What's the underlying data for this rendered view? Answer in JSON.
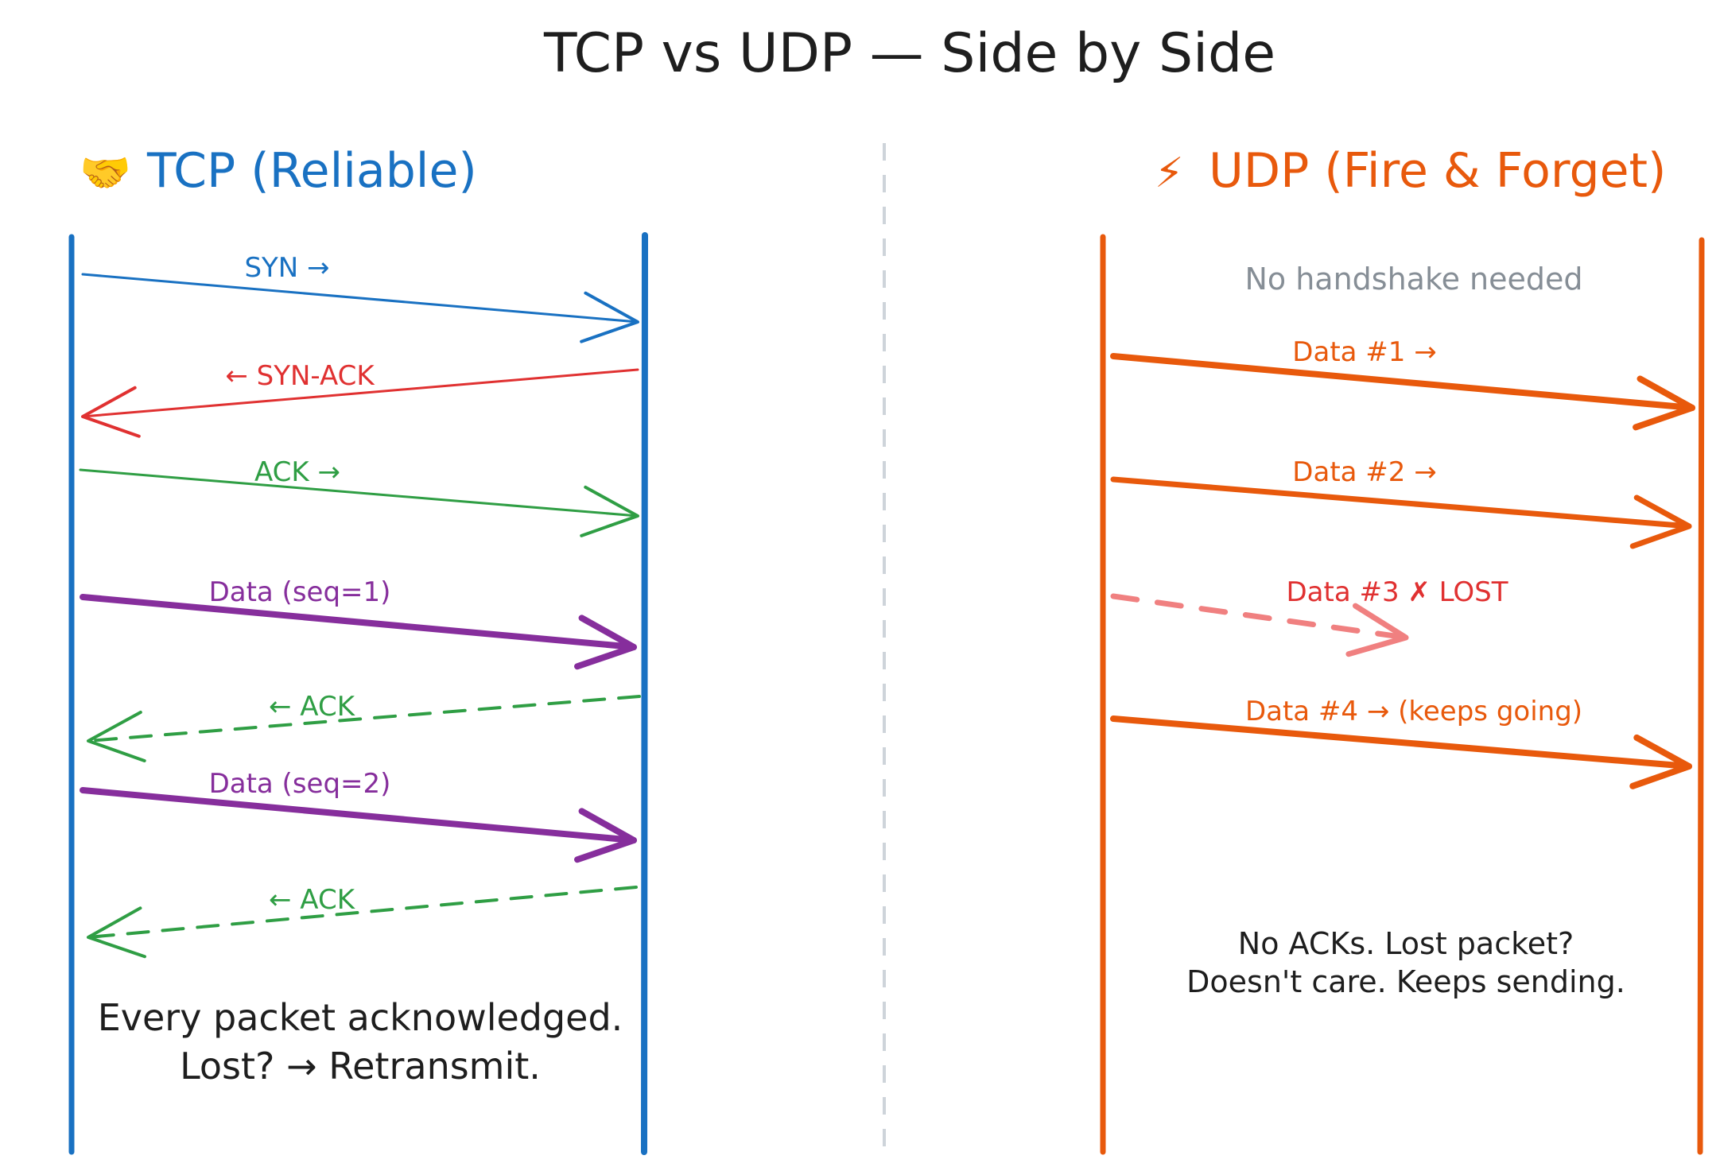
{
  "title": "TCP vs UDP — Side by Side",
  "colors": {
    "tcp": "#1971c2",
    "udp": "#e8590c",
    "syn_ack": "#e03131",
    "ack": "#2f9e44",
    "data": "#862e9c",
    "lost": "#f08080",
    "lost_text": "#e03131",
    "muted": "#868e96",
    "text": "#1e1e1e",
    "divider": "#ced4da"
  },
  "tcp": {
    "icon": "handshake-icon",
    "icon_char": "🤝",
    "heading": "TCP (Reliable)",
    "messages": [
      {
        "label": "SYN →",
        "style": "solid",
        "direction": "right"
      },
      {
        "label": "← SYN-ACK",
        "style": "solid",
        "direction": "left"
      },
      {
        "label": "ACK →",
        "style": "solid",
        "direction": "right"
      },
      {
        "label": "Data (seq=1)",
        "style": "solid-thick",
        "direction": "right"
      },
      {
        "label": "← ACK",
        "style": "dashed",
        "direction": "left"
      },
      {
        "label": "Data (seq=2)",
        "style": "solid-thick",
        "direction": "right"
      },
      {
        "label": "← ACK",
        "style": "dashed",
        "direction": "left"
      }
    ],
    "note": [
      "Every packet acknowledged.",
      "Lost? → Retransmit."
    ]
  },
  "udp": {
    "icon": "lightning-icon",
    "icon_char": "⚡",
    "heading": "UDP (Fire & Forget)",
    "no_handshake": "No handshake needed",
    "messages": [
      {
        "label": "Data #1 →",
        "style": "solid-thick",
        "direction": "right"
      },
      {
        "label": "Data #2 →",
        "style": "solid-thick",
        "direction": "right"
      },
      {
        "label": "Data #3 ✗ LOST",
        "style": "dashed",
        "direction": "right",
        "lost": true
      },
      {
        "label": "Data #4 → (keeps going)",
        "style": "solid-thick",
        "direction": "right"
      }
    ],
    "note": [
      "No ACKs. Lost packet?",
      "Doesn't care. Keeps sending."
    ]
  }
}
